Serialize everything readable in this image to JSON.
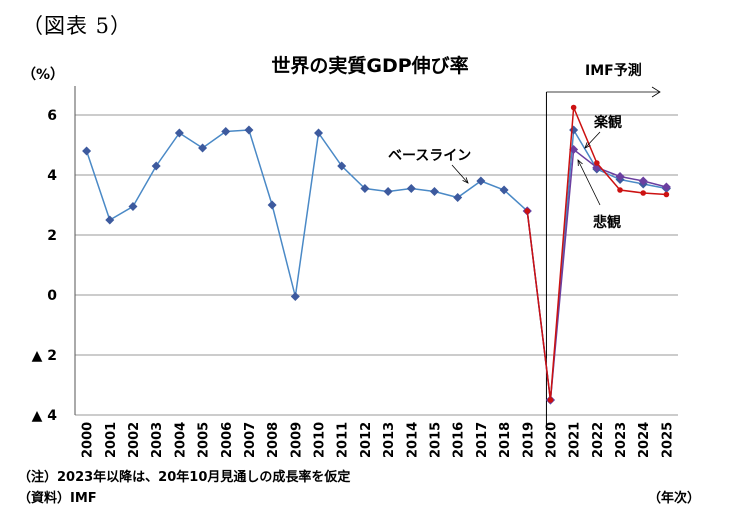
{
  "figure_label": "（図表 5）",
  "notes": {
    "note_line": "（注）2023年以降は、20年10月見通しの成長率を仮定",
    "source_line": "（資料）IMF"
  },
  "chart_data": {
    "type": "line",
    "title": "世界の実質GDP伸び率",
    "ylabel": "（%）",
    "xlabel": "（年次）",
    "ylim": [
      -4,
      7
    ],
    "yticks": [
      6,
      4,
      2,
      0,
      -2,
      -4
    ],
    "ytick_labels": [
      "6",
      "4",
      "2",
      "0",
      "▲ 2",
      "▲ 4"
    ],
    "grid": true,
    "categories": [
      "2000",
      "2001",
      "2002",
      "2003",
      "2004",
      "2005",
      "2006",
      "2007",
      "2008",
      "2009",
      "2010",
      "2011",
      "2012",
      "2013",
      "2014",
      "2015",
      "2016",
      "2017",
      "2018",
      "2019",
      "2020",
      "2021",
      "2022",
      "2023",
      "2024",
      "2025"
    ],
    "series": [
      {
        "name": "ベースライン",
        "color": "#4a89c6",
        "marker_color": "#3d5a9e",
        "marker": "diamond",
        "values": [
          4.8,
          2.5,
          2.95,
          4.3,
          5.4,
          4.9,
          5.45,
          5.5,
          3.0,
          -0.05,
          5.4,
          4.3,
          3.55,
          3.45,
          3.55,
          3.45,
          3.25,
          3.8,
          3.5,
          2.8,
          -3.5,
          5.5,
          4.2,
          3.85,
          3.7,
          3.55
        ]
      },
      {
        "name": "楽観",
        "color": "#cc1111",
        "marker": "circle",
        "values": [
          null,
          null,
          null,
          null,
          null,
          null,
          null,
          null,
          null,
          null,
          null,
          null,
          null,
          null,
          null,
          null,
          null,
          null,
          null,
          2.8,
          -3.5,
          6.25,
          4.4,
          3.5,
          3.4,
          3.35
        ]
      },
      {
        "name": "悲観",
        "color": "#6b3fa0",
        "marker": "diamond",
        "values": [
          null,
          null,
          null,
          null,
          null,
          null,
          null,
          null,
          null,
          null,
          null,
          null,
          null,
          null,
          null,
          null,
          null,
          null,
          null,
          2.8,
          -3.5,
          4.85,
          4.25,
          3.95,
          3.8,
          3.6
        ]
      }
    ],
    "annotations": {
      "forecast": "IMF予測",
      "baseline": "ベースライン",
      "optimistic": "楽観",
      "pessimistic": "悲観"
    },
    "colors": {
      "grid": "#9a9a9a",
      "axis": "#555555"
    }
  }
}
